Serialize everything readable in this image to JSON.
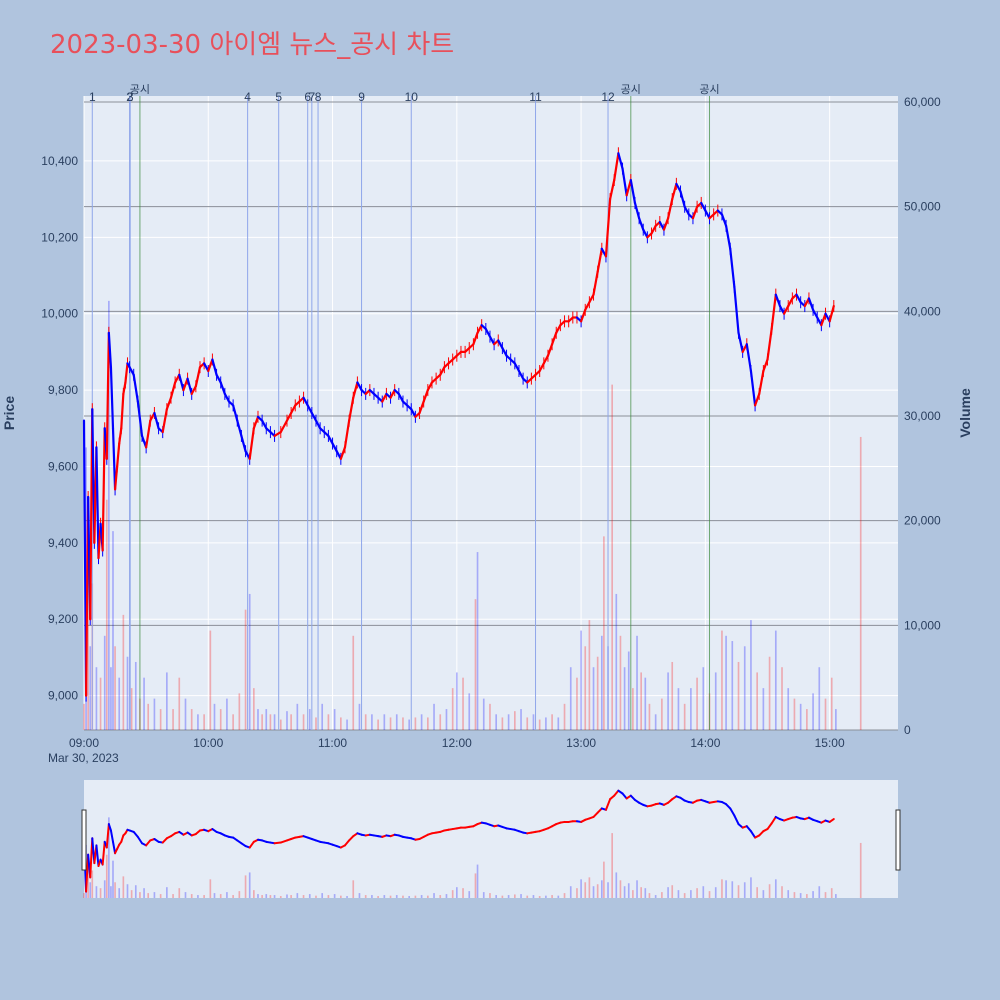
{
  "title": "2023-03-30 아이엠 뉴스_공시 차트",
  "colors": {
    "up": "#ff0000",
    "down": "#0000ff",
    "news_line": "#8fa6ea",
    "disclosure_line": "#3a8a3a",
    "plot_bg": "#e5ecf6",
    "page_bg": "#b0c4de",
    "title": "#e8505b"
  },
  "chart_data": {
    "type": "candlestick",
    "date_label": "Mar 30, 2023",
    "ylabel": "Price",
    "y2label": "Volume",
    "ylim": [
      8910,
      10570
    ],
    "y2lim": [
      0,
      60000
    ],
    "price_ticks": [
      "9,000",
      "9,200",
      "9,400",
      "9,600",
      "9,800",
      "10,000",
      "10,200",
      "10,400"
    ],
    "volume_ticks": [
      "0",
      "10,000",
      "20,000",
      "30,000",
      "40,000",
      "50,000",
      "60,000"
    ],
    "x_tick_labels": [
      "09:00",
      "10:00",
      "11:00",
      "12:00",
      "13:00",
      "14:00",
      "15:00"
    ],
    "x_range_minutes": [
      0,
      393
    ],
    "price_path": [
      [
        0,
        9720
      ],
      [
        1,
        9000
      ],
      [
        2,
        9520
      ],
      [
        3,
        9200
      ],
      [
        4,
        9750
      ],
      [
        5,
        9400
      ],
      [
        6,
        9650
      ],
      [
        7,
        9360
      ],
      [
        8,
        9450
      ],
      [
        9,
        9380
      ],
      [
        10,
        9700
      ],
      [
        11,
        9620
      ],
      [
        12,
        9950
      ],
      [
        13,
        9860
      ],
      [
        14,
        9700
      ],
      [
        15,
        9540
      ],
      [
        16,
        9600
      ],
      [
        17,
        9660
      ],
      [
        18,
        9700
      ],
      [
        19,
        9790
      ],
      [
        20,
        9820
      ],
      [
        21,
        9870
      ],
      [
        22,
        9860
      ],
      [
        24,
        9840
      ],
      [
        26,
        9770
      ],
      [
        28,
        9680
      ],
      [
        30,
        9650
      ],
      [
        32,
        9720
      ],
      [
        34,
        9740
      ],
      [
        36,
        9700
      ],
      [
        38,
        9690
      ],
      [
        40,
        9750
      ],
      [
        42,
        9780
      ],
      [
        44,
        9820
      ],
      [
        46,
        9840
      ],
      [
        48,
        9800
      ],
      [
        50,
        9830
      ],
      [
        52,
        9790
      ],
      [
        54,
        9810
      ],
      [
        56,
        9860
      ],
      [
        58,
        9870
      ],
      [
        60,
        9850
      ],
      [
        62,
        9880
      ],
      [
        64,
        9840
      ],
      [
        66,
        9820
      ],
      [
        68,
        9790
      ],
      [
        70,
        9770
      ],
      [
        72,
        9760
      ],
      [
        74,
        9720
      ],
      [
        76,
        9680
      ],
      [
        78,
        9640
      ],
      [
        80,
        9620
      ],
      [
        82,
        9700
      ],
      [
        84,
        9730
      ],
      [
        86,
        9720
      ],
      [
        88,
        9700
      ],
      [
        90,
        9690
      ],
      [
        92,
        9680
      ],
      [
        95,
        9690
      ],
      [
        98,
        9720
      ],
      [
        100,
        9740
      ],
      [
        102,
        9760
      ],
      [
        104,
        9770
      ],
      [
        106,
        9780
      ],
      [
        108,
        9760
      ],
      [
        110,
        9740
      ],
      [
        112,
        9720
      ],
      [
        114,
        9700
      ],
      [
        116,
        9690
      ],
      [
        118,
        9680
      ],
      [
        120,
        9660
      ],
      [
        122,
        9640
      ],
      [
        124,
        9620
      ],
      [
        126,
        9650
      ],
      [
        128,
        9720
      ],
      [
        130,
        9780
      ],
      [
        132,
        9820
      ],
      [
        134,
        9800
      ],
      [
        136,
        9790
      ],
      [
        138,
        9800
      ],
      [
        140,
        9790
      ],
      [
        142,
        9780
      ],
      [
        144,
        9770
      ],
      [
        146,
        9790
      ],
      [
        148,
        9780
      ],
      [
        150,
        9800
      ],
      [
        152,
        9790
      ],
      [
        154,
        9770
      ],
      [
        156,
        9760
      ],
      [
        158,
        9750
      ],
      [
        160,
        9730
      ],
      [
        162,
        9740
      ],
      [
        164,
        9770
      ],
      [
        166,
        9800
      ],
      [
        168,
        9820
      ],
      [
        170,
        9830
      ],
      [
        172,
        9840
      ],
      [
        174,
        9860
      ],
      [
        176,
        9870
      ],
      [
        178,
        9880
      ],
      [
        180,
        9890
      ],
      [
        182,
        9900
      ],
      [
        184,
        9900
      ],
      [
        186,
        9910
      ],
      [
        188,
        9920
      ],
      [
        190,
        9950
      ],
      [
        192,
        9970
      ],
      [
        194,
        9960
      ],
      [
        196,
        9940
      ],
      [
        198,
        9920
      ],
      [
        200,
        9930
      ],
      [
        202,
        9910
      ],
      [
        204,
        9890
      ],
      [
        206,
        9880
      ],
      [
        208,
        9870
      ],
      [
        210,
        9850
      ],
      [
        212,
        9830
      ],
      [
        214,
        9820
      ],
      [
        216,
        9830
      ],
      [
        218,
        9840
      ],
      [
        220,
        9850
      ],
      [
        222,
        9870
      ],
      [
        224,
        9890
      ],
      [
        226,
        9920
      ],
      [
        228,
        9950
      ],
      [
        230,
        9970
      ],
      [
        232,
        9980
      ],
      [
        234,
        9980
      ],
      [
        236,
        9990
      ],
      [
        238,
        9990
      ],
      [
        240,
        9980
      ],
      [
        242,
        10010
      ],
      [
        244,
        10030
      ],
      [
        246,
        10050
      ],
      [
        248,
        10110
      ],
      [
        250,
        10170
      ],
      [
        252,
        10150
      ],
      [
        254,
        10300
      ],
      [
        256,
        10350
      ],
      [
        258,
        10420
      ],
      [
        260,
        10380
      ],
      [
        262,
        10310
      ],
      [
        264,
        10350
      ],
      [
        266,
        10290
      ],
      [
        268,
        10250
      ],
      [
        270,
        10220
      ],
      [
        272,
        10200
      ],
      [
        274,
        10210
      ],
      [
        276,
        10230
      ],
      [
        278,
        10240
      ],
      [
        280,
        10220
      ],
      [
        282,
        10250
      ],
      [
        284,
        10300
      ],
      [
        286,
        10340
      ],
      [
        288,
        10320
      ],
      [
        290,
        10280
      ],
      [
        292,
        10260
      ],
      [
        294,
        10250
      ],
      [
        296,
        10280
      ],
      [
        298,
        10290
      ],
      [
        300,
        10270
      ],
      [
        302,
        10250
      ],
      [
        304,
        10260
      ],
      [
        306,
        10270
      ],
      [
        308,
        10260
      ],
      [
        310,
        10230
      ],
      [
        312,
        10170
      ],
      [
        314,
        10070
      ],
      [
        316,
        9950
      ],
      [
        318,
        9900
      ],
      [
        320,
        9920
      ],
      [
        322,
        9850
      ],
      [
        324,
        9760
      ],
      [
        326,
        9790
      ],
      [
        328,
        9850
      ],
      [
        330,
        9880
      ],
      [
        332,
        9960
      ],
      [
        334,
        10050
      ],
      [
        336,
        10020
      ],
      [
        338,
        10000
      ],
      [
        340,
        10020
      ],
      [
        342,
        10040
      ],
      [
        344,
        10050
      ],
      [
        346,
        10030
      ],
      [
        348,
        10020
      ],
      [
        350,
        10040
      ],
      [
        352,
        10010
      ],
      [
        354,
        9990
      ],
      [
        356,
        9970
      ],
      [
        358,
        10000
      ],
      [
        360,
        9980
      ],
      [
        362,
        10020
      ]
    ],
    "volume_bars": [
      [
        0,
        2500,
        "up"
      ],
      [
        1,
        27000,
        "down"
      ],
      [
        2,
        20000,
        "up"
      ],
      [
        3,
        8000,
        "down"
      ],
      [
        4,
        14000,
        "up"
      ],
      [
        6,
        6000,
        "down"
      ],
      [
        8,
        5000,
        "up"
      ],
      [
        10,
        9000,
        "down"
      ],
      [
        11,
        22000,
        "up"
      ],
      [
        12,
        41000,
        "down"
      ],
      [
        13,
        6000,
        "down"
      ],
      [
        14,
        19000,
        "down"
      ],
      [
        15,
        8000,
        "up"
      ],
      [
        17,
        5000,
        "down"
      ],
      [
        19,
        11000,
        "up"
      ],
      [
        21,
        7000,
        "down"
      ],
      [
        23,
        4000,
        "up"
      ],
      [
        25,
        6500,
        "down"
      ],
      [
        27,
        3000,
        "up"
      ],
      [
        29,
        5000,
        "down"
      ],
      [
        31,
        2500,
        "up"
      ],
      [
        34,
        3000,
        "down"
      ],
      [
        37,
        2000,
        "up"
      ],
      [
        40,
        5500,
        "down"
      ],
      [
        43,
        2000,
        "up"
      ],
      [
        46,
        5000,
        "up"
      ],
      [
        49,
        3000,
        "down"
      ],
      [
        52,
        2000,
        "up"
      ],
      [
        55,
        1500,
        "down"
      ],
      [
        58,
        1500,
        "up"
      ],
      [
        61,
        9500,
        "up"
      ],
      [
        63,
        2500,
        "down"
      ],
      [
        66,
        2000,
        "up"
      ],
      [
        69,
        3000,
        "down"
      ],
      [
        72,
        1500,
        "up"
      ],
      [
        75,
        3500,
        "up"
      ],
      [
        78,
        11500,
        "up"
      ],
      [
        80,
        13000,
        "down"
      ],
      [
        82,
        4000,
        "up"
      ],
      [
        84,
        2000,
        "down"
      ],
      [
        86,
        1500,
        "up"
      ],
      [
        88,
        2000,
        "down"
      ],
      [
        90,
        1500,
        "up"
      ],
      [
        92,
        1500,
        "down"
      ],
      [
        95,
        1000,
        "up"
      ],
      [
        98,
        1800,
        "down"
      ],
      [
        100,
        1500,
        "up"
      ],
      [
        103,
        2500,
        "down"
      ],
      [
        106,
        1500,
        "up"
      ],
      [
        109,
        2000,
        "down"
      ],
      [
        112,
        1200,
        "up"
      ],
      [
        115,
        2500,
        "down"
      ],
      [
        118,
        1500,
        "up"
      ],
      [
        121,
        2000,
        "down"
      ],
      [
        124,
        1200,
        "up"
      ],
      [
        127,
        1000,
        "down"
      ],
      [
        130,
        9000,
        "up"
      ],
      [
        133,
        2500,
        "down"
      ],
      [
        136,
        1500,
        "up"
      ],
      [
        139,
        1500,
        "down"
      ],
      [
        142,
        1000,
        "up"
      ],
      [
        145,
        1500,
        "down"
      ],
      [
        148,
        1200,
        "up"
      ],
      [
        151,
        1500,
        "down"
      ],
      [
        154,
        1200,
        "up"
      ],
      [
        157,
        1000,
        "down"
      ],
      [
        160,
        1200,
        "up"
      ],
      [
        163,
        1500,
        "down"
      ],
      [
        166,
        1200,
        "up"
      ],
      [
        169,
        2500,
        "down"
      ],
      [
        172,
        1500,
        "up"
      ],
      [
        175,
        2000,
        "down"
      ],
      [
        178,
        4000,
        "up"
      ],
      [
        180,
        5500,
        "down"
      ],
      [
        183,
        5000,
        "up"
      ],
      [
        186,
        3500,
        "down"
      ],
      [
        189,
        12500,
        "up"
      ],
      [
        190,
        17000,
        "down"
      ],
      [
        193,
        3000,
        "down"
      ],
      [
        196,
        2500,
        "up"
      ],
      [
        199,
        1500,
        "down"
      ],
      [
        202,
        1200,
        "up"
      ],
      [
        205,
        1500,
        "down"
      ],
      [
        208,
        1800,
        "up"
      ],
      [
        211,
        2000,
        "down"
      ],
      [
        214,
        1200,
        "up"
      ],
      [
        217,
        1500,
        "down"
      ],
      [
        220,
        1000,
        "up"
      ],
      [
        223,
        1200,
        "down"
      ],
      [
        226,
        1500,
        "up"
      ],
      [
        229,
        1200,
        "down"
      ],
      [
        232,
        2500,
        "up"
      ],
      [
        235,
        6000,
        "down"
      ],
      [
        238,
        5000,
        "up"
      ],
      [
        240,
        9500,
        "down"
      ],
      [
        242,
        8000,
        "up"
      ],
      [
        244,
        10500,
        "up"
      ],
      [
        246,
        6000,
        "down"
      ],
      [
        248,
        7000,
        "up"
      ],
      [
        250,
        9000,
        "down"
      ],
      [
        251,
        18500,
        "up"
      ],
      [
        253,
        8000,
        "down"
      ],
      [
        255,
        33000,
        "up"
      ],
      [
        257,
        13000,
        "down"
      ],
      [
        259,
        9000,
        "up"
      ],
      [
        261,
        6000,
        "down"
      ],
      [
        263,
        7500,
        "down"
      ],
      [
        265,
        4000,
        "up"
      ],
      [
        267,
        9000,
        "down"
      ],
      [
        269,
        5500,
        "up"
      ],
      [
        271,
        5000,
        "down"
      ],
      [
        273,
        2500,
        "up"
      ],
      [
        276,
        1500,
        "down"
      ],
      [
        279,
        3000,
        "up"
      ],
      [
        282,
        5500,
        "down"
      ],
      [
        284,
        6500,
        "up"
      ],
      [
        287,
        4000,
        "down"
      ],
      [
        290,
        2500,
        "up"
      ],
      [
        293,
        4000,
        "down"
      ],
      [
        296,
        5000,
        "up"
      ],
      [
        299,
        6000,
        "down"
      ],
      [
        302,
        3500,
        "up"
      ],
      [
        305,
        5500,
        "down"
      ],
      [
        308,
        9500,
        "up"
      ],
      [
        310,
        9000,
        "down"
      ],
      [
        313,
        8500,
        "down"
      ],
      [
        316,
        6500,
        "up"
      ],
      [
        319,
        8000,
        "down"
      ],
      [
        322,
        10500,
        "down"
      ],
      [
        325,
        5500,
        "up"
      ],
      [
        328,
        4000,
        "down"
      ],
      [
        331,
        7000,
        "up"
      ],
      [
        334,
        9500,
        "down"
      ],
      [
        337,
        6000,
        "up"
      ],
      [
        340,
        4000,
        "down"
      ],
      [
        343,
        3000,
        "up"
      ],
      [
        346,
        2500,
        "down"
      ],
      [
        349,
        2000,
        "up"
      ],
      [
        352,
        3500,
        "down"
      ],
      [
        355,
        6000,
        "down"
      ],
      [
        358,
        3000,
        "up"
      ],
      [
        361,
        5000,
        "up"
      ],
      [
        363,
        2000,
        "down"
      ],
      [
        375,
        28000,
        "up"
      ]
    ],
    "news_markers": [
      {
        "label": "1",
        "minute": 4
      },
      {
        "label": "2",
        "minute": 22
      },
      {
        "label": "3",
        "minute": 22.3
      },
      {
        "label": "4",
        "minute": 79
      },
      {
        "label": "5",
        "minute": 94
      },
      {
        "label": "6",
        "minute": 108
      },
      {
        "label": "7",
        "minute": 110
      },
      {
        "label": "8",
        "minute": 113
      },
      {
        "label": "9",
        "minute": 134
      },
      {
        "label": "10",
        "minute": 158
      },
      {
        "label": "11",
        "minute": 218
      },
      {
        "label": "12",
        "minute": 253
      }
    ],
    "disclosure_markers": [
      {
        "label": "공시",
        "minute": 27
      },
      {
        "label": "공시",
        "minute": 264
      },
      {
        "label": "공시",
        "minute": 302
      }
    ]
  }
}
